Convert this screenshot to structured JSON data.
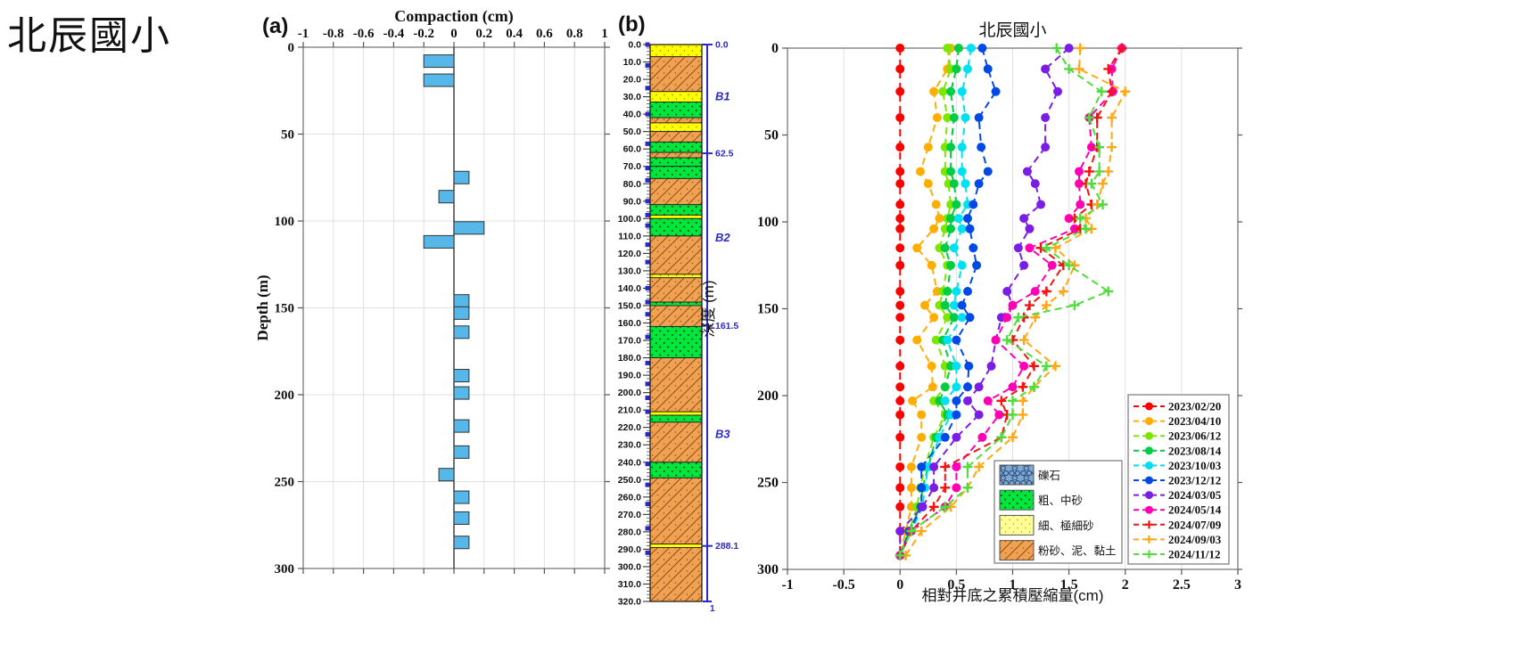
{
  "page_title": "北辰國小",
  "panel_labels": {
    "a": "(a)",
    "b": "(b)"
  },
  "colors": {
    "bar": "#56B7E8",
    "bar_edge": "#333333",
    "grid": "#E0E0E0",
    "axis": "#7A7A7A",
    "tick": "#555555",
    "annotation_blue": "#2B2BC4",
    "litho_fine_sand": "#FFFF00",
    "litho_fine_sand_legend": "#FFFF94",
    "litho_coarse_sand": "#00E63C",
    "litho_silt_clay": "#F2A150",
    "litho_silt_clay_line": "#8A5420",
    "litho_gravel": "#7FA8D0",
    "litho_gravel_line": "#2D4D80"
  },
  "chart_data": [
    {
      "id": "compaction_bars",
      "type": "bar",
      "orientation": "horizontal",
      "title": "Compaction (cm)",
      "ylabel": "Depth (m)",
      "xlim": [
        -1,
        1
      ],
      "ylim": [
        0,
        300
      ],
      "xtick_labels": [
        "-1",
        "-0.8",
        "-0.6",
        "-0.4",
        "-0.2",
        "0",
        "0.2",
        "0.4",
        "0.6",
        "0.8",
        "1"
      ],
      "xticks": [
        -1,
        -0.8,
        -0.6,
        -0.4,
        -0.2,
        0,
        0.2,
        0.4,
        0.6,
        0.8,
        1
      ],
      "yticks": [
        0,
        50,
        100,
        150,
        200,
        250,
        300
      ],
      "grid": true,
      "bars": [
        {
          "depth": 8,
          "value": -0.2
        },
        {
          "depth": 19,
          "value": -0.2
        },
        {
          "depth": 75,
          "value": 0.1
        },
        {
          "depth": 86,
          "value": -0.1
        },
        {
          "depth": 104,
          "value": 0.2
        },
        {
          "depth": 112,
          "value": -0.2
        },
        {
          "depth": 146,
          "value": 0.1
        },
        {
          "depth": 153,
          "value": 0.1
        },
        {
          "depth": 164,
          "value": 0.1
        },
        {
          "depth": 189,
          "value": 0.1
        },
        {
          "depth": 199,
          "value": 0.1
        },
        {
          "depth": 218,
          "value": 0.1
        },
        {
          "depth": 233,
          "value": 0.1
        },
        {
          "depth": 246,
          "value": -0.1
        },
        {
          "depth": 259,
          "value": 0.1
        },
        {
          "depth": 271,
          "value": 0.1
        },
        {
          "depth": 285,
          "value": 0.1
        }
      ]
    },
    {
      "id": "strat_column",
      "type": "strat-column",
      "depth_range": [
        0,
        320
      ],
      "tick_interval": 10,
      "tick_label_decimals": 1,
      "layers": [
        {
          "from": 0,
          "to": 7,
          "type": "fine_sand"
        },
        {
          "from": 7,
          "to": 27,
          "type": "silt_clay"
        },
        {
          "from": 27,
          "to": 33,
          "type": "fine_sand"
        },
        {
          "from": 33,
          "to": 42,
          "type": "coarse_sand"
        },
        {
          "from": 42,
          "to": 45,
          "type": "silt_clay"
        },
        {
          "from": 45,
          "to": 50,
          "type": "fine_sand"
        },
        {
          "from": 50,
          "to": 56,
          "type": "silt_clay"
        },
        {
          "from": 56,
          "to": 62,
          "type": "coarse_sand"
        },
        {
          "from": 62,
          "to": 65,
          "type": "silt_clay"
        },
        {
          "from": 65,
          "to": 70,
          "type": "coarse_sand"
        },
        {
          "from": 70,
          "to": 77,
          "type": "coarse_sand"
        },
        {
          "from": 77,
          "to": 92,
          "type": "silt_clay"
        },
        {
          "from": 92,
          "to": 98,
          "type": "coarse_sand"
        },
        {
          "from": 98,
          "to": 100,
          "type": "fine_sand"
        },
        {
          "from": 100,
          "to": 110,
          "type": "coarse_sand"
        },
        {
          "from": 110,
          "to": 132,
          "type": "silt_clay"
        },
        {
          "from": 132,
          "to": 134,
          "type": "fine_sand"
        },
        {
          "from": 134,
          "to": 148,
          "type": "silt_clay"
        },
        {
          "from": 148,
          "to": 150,
          "type": "coarse_sand"
        },
        {
          "from": 150,
          "to": 162,
          "type": "silt_clay"
        },
        {
          "from": 162,
          "to": 180,
          "type": "coarse_sand"
        },
        {
          "from": 180,
          "to": 211,
          "type": "silt_clay"
        },
        {
          "from": 211,
          "to": 213,
          "type": "fine_sand"
        },
        {
          "from": 213,
          "to": 217,
          "type": "coarse_sand"
        },
        {
          "from": 217,
          "to": 240,
          "type": "silt_clay"
        },
        {
          "from": 240,
          "to": 249,
          "type": "coarse_sand"
        },
        {
          "from": 249,
          "to": 287,
          "type": "silt_clay"
        },
        {
          "from": 287,
          "to": 289,
          "type": "fine_sand"
        },
        {
          "from": 289,
          "to": 320,
          "type": "silt_clay"
        }
      ],
      "boundary_markers": [
        {
          "depth": 0,
          "label": "0.0"
        },
        {
          "depth": 62.5,
          "label": "62.5"
        },
        {
          "depth": 161.5,
          "label": "161.5"
        },
        {
          "depth": 288.1,
          "label": "288.1"
        }
      ],
      "zones": [
        {
          "label": "B1",
          "depth": 30
        },
        {
          "label": "B2",
          "depth": 111
        },
        {
          "label": "B3",
          "depth": 224
        }
      ],
      "bottom_label": "1",
      "lithology_legend": [
        {
          "label": "礫石",
          "pattern": "gravel"
        },
        {
          "label": "粗、中砂",
          "pattern": "coarse_sand"
        },
        {
          "label": "細、極細砂",
          "pattern": "fine_sand_legend"
        },
        {
          "label": "粉砂、泥、黏土",
          "pattern": "silt_clay"
        }
      ]
    },
    {
      "id": "cumulative_compression",
      "type": "line",
      "title": "北辰國小",
      "xlabel": "相對井底之累積壓縮量(cm)",
      "ylabel": "深度 (m)",
      "xlim": [
        -1,
        3
      ],
      "ylim": [
        0,
        300
      ],
      "xtick_labels": [
        "-1",
        "-0.5",
        "0",
        "0.5",
        "1",
        "1.5",
        "2",
        "2.5",
        "3"
      ],
      "xticks": [
        -1,
        -0.5,
        0,
        0.5,
        1,
        1.5,
        2,
        2.5,
        3
      ],
      "yticks": [
        0,
        50,
        100,
        150,
        200,
        250,
        300
      ],
      "grid": "vertical-only",
      "legend_position": "right-lower",
      "depths": [
        0,
        12,
        25,
        40,
        57,
        71,
        78,
        90,
        98,
        104,
        115,
        125,
        140,
        148,
        155,
        168,
        183,
        195,
        203,
        211,
        224,
        241,
        253,
        264,
        278,
        292
      ],
      "series": [
        {
          "name": "2023/02/20",
          "color": "#FF0000",
          "marker": "circle",
          "values": [
            0,
            0,
            0,
            0,
            0,
            0,
            0,
            0,
            0,
            0,
            0,
            0,
            0,
            0,
            0,
            0,
            0,
            0,
            0,
            0,
            0,
            0,
            0,
            0,
            0,
            0
          ]
        },
        {
          "name": "2023/04/10",
          "color": "#FFAE00",
          "marker": "circle",
          "values": [
            0.45,
            0.42,
            0.3,
            0.33,
            0.25,
            0.18,
            0.25,
            0.32,
            0.35,
            0.3,
            0.15,
            0.28,
            0.33,
            0.22,
            0.3,
            0.15,
            0.28,
            0.29,
            0.11,
            0.19,
            0.19,
            0.1,
            0.1,
            0.1,
            0.05,
            0.0
          ]
        },
        {
          "name": "2023/06/12",
          "color": "#7CE600",
          "marker": "circle",
          "values": [
            0.42,
            0.45,
            0.38,
            0.42,
            0.4,
            0.4,
            0.43,
            0.45,
            0.42,
            0.4,
            0.35,
            0.42,
            0.38,
            0.35,
            0.42,
            0.32,
            0.4,
            0.4,
            0.3,
            0.4,
            0.3,
            0.22,
            0.18,
            0.15,
            0.08,
            0.0
          ]
        },
        {
          "name": "2023/08/14",
          "color": "#00CC44",
          "marker": "circle",
          "values": [
            0.52,
            0.5,
            0.45,
            0.48,
            0.45,
            0.45,
            0.48,
            0.5,
            0.45,
            0.45,
            0.4,
            0.45,
            0.42,
            0.4,
            0.48,
            0.38,
            0.45,
            0.4,
            0.35,
            0.42,
            0.32,
            0.25,
            0.2,
            0.18,
            0.08,
            0.0
          ]
        },
        {
          "name": "2023/10/03",
          "color": "#00E0F0",
          "marker": "circle",
          "values": [
            0.63,
            0.6,
            0.55,
            0.58,
            0.55,
            0.55,
            0.58,
            0.6,
            0.52,
            0.55,
            0.48,
            0.55,
            0.5,
            0.48,
            0.55,
            0.42,
            0.5,
            0.5,
            0.4,
            0.45,
            0.35,
            0.25,
            0.22,
            0.2,
            0.1,
            0.0
          ]
        },
        {
          "name": "2023/12/12",
          "color": "#0049E6",
          "marker": "circle",
          "values": [
            0.73,
            0.78,
            0.85,
            0.7,
            0.72,
            0.78,
            0.7,
            0.65,
            0.6,
            0.62,
            0.65,
            0.68,
            0.6,
            0.55,
            0.62,
            0.5,
            0.61,
            0.6,
            0.5,
            0.5,
            0.4,
            0.19,
            0.19,
            0.19,
            0.08,
            0.0
          ]
        },
        {
          "name": "2024/03/05",
          "color": "#7A1EE6",
          "marker": "circle",
          "values": [
            1.5,
            1.29,
            1.4,
            1.29,
            1.29,
            1.13,
            1.2,
            1.25,
            1.1,
            1.15,
            1.05,
            1.1,
            0.95,
            1.0,
            0.9,
            0.85,
            0.81,
            0.7,
            0.6,
            0.7,
            0.5,
            0.3,
            0.3,
            0.2,
            0.0,
            0.0
          ]
        },
        {
          "name": "2024/05/14",
          "color": "#FF00B4",
          "marker": "circle",
          "values": [
            1.97,
            1.88,
            1.89,
            1.68,
            1.7,
            1.59,
            1.59,
            1.6,
            1.5,
            1.55,
            1.15,
            1.35,
            1.2,
            1.0,
            0.95,
            0.85,
            1.1,
            1.0,
            0.78,
            0.88,
            0.73,
            0.5,
            0.5,
            0.4,
            0.1,
            0.0
          ]
        },
        {
          "name": "2024/07/09",
          "color": "#F01414",
          "marker": "plus",
          "values": [
            1.97,
            1.85,
            1.88,
            1.75,
            1.75,
            1.68,
            1.65,
            1.7,
            1.55,
            1.6,
            1.25,
            1.45,
            1.3,
            1.15,
            1.1,
            1.0,
            1.19,
            1.09,
            0.9,
            0.95,
            0.9,
            0.4,
            0.4,
            0.3,
            0.1,
            0.0
          ]
        },
        {
          "name": "2024/09/03",
          "color": "#FFA714",
          "marker": "plus",
          "values": [
            1.6,
            1.59,
            2.0,
            1.88,
            1.88,
            1.85,
            1.8,
            1.75,
            1.65,
            1.7,
            1.38,
            1.55,
            1.45,
            1.3,
            1.2,
            1.1,
            1.38,
            1.19,
            1.09,
            1.09,
            1.0,
            0.7,
            0.6,
            0.45,
            0.19,
            0.05
          ]
        },
        {
          "name": "2024/11/12",
          "color": "#50DC3C",
          "marker": "plus",
          "values": [
            1.39,
            1.5,
            1.79,
            1.68,
            1.77,
            1.77,
            1.7,
            1.8,
            1.6,
            1.65,
            1.3,
            1.5,
            1.85,
            1.55,
            1.05,
            0.95,
            1.3,
            1.19,
            1.0,
            1.0,
            0.9,
            0.6,
            0.6,
            0.4,
            0.1,
            0.0
          ]
        }
      ]
    }
  ]
}
